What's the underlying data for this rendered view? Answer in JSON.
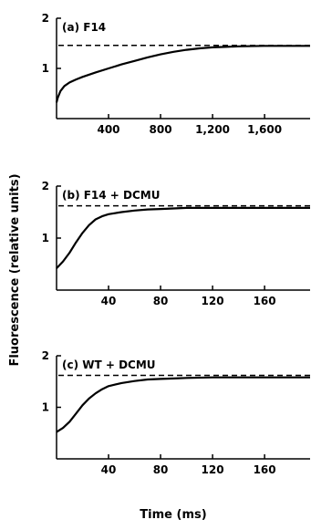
{
  "chart_data": [
    {
      "type": "line",
      "panel_label": "(a) F14",
      "xlim": [
        0,
        1950
      ],
      "ylim": [
        0,
        2
      ],
      "xticks": [
        400,
        800,
        1200,
        1600
      ],
      "xtick_labels": [
        "400",
        "800",
        "1,200",
        "1,600"
      ],
      "yticks": [
        1,
        2
      ],
      "ytick_labels": [
        "1",
        "2"
      ],
      "reference_level": 1.46,
      "x": [
        0,
        10,
        30,
        60,
        100,
        150,
        200,
        300,
        400,
        500,
        600,
        700,
        800,
        900,
        1000,
        1100,
        1200,
        1300,
        1400,
        1600,
        1800,
        1950
      ],
      "y": [
        0.32,
        0.42,
        0.55,
        0.65,
        0.72,
        0.78,
        0.83,
        0.92,
        1.0,
        1.08,
        1.15,
        1.22,
        1.28,
        1.33,
        1.37,
        1.4,
        1.42,
        1.43,
        1.44,
        1.45,
        1.45,
        1.45
      ]
    },
    {
      "type": "line",
      "panel_label": "(b) F14 + DCMU",
      "xlim": [
        0,
        195
      ],
      "ylim": [
        0,
        2
      ],
      "xticks": [
        40,
        80,
        120,
        160
      ],
      "xtick_labels": [
        "40",
        "80",
        "120",
        "160"
      ],
      "yticks": [
        1,
        2
      ],
      "ytick_labels": [
        "1",
        "2"
      ],
      "reference_level": 1.62,
      "x": [
        0,
        5,
        10,
        15,
        20,
        25,
        30,
        35,
        40,
        50,
        60,
        70,
        80,
        90,
        100,
        120,
        140,
        160,
        195
      ],
      "y": [
        0.42,
        0.55,
        0.72,
        0.92,
        1.1,
        1.25,
        1.36,
        1.42,
        1.46,
        1.5,
        1.53,
        1.55,
        1.56,
        1.57,
        1.58,
        1.58,
        1.58,
        1.58,
        1.58
      ]
    },
    {
      "type": "line",
      "panel_label": "(c) WT + DCMU",
      "xlim": [
        0,
        195
      ],
      "ylim": [
        0,
        2
      ],
      "xticks": [
        40,
        80,
        120,
        160
      ],
      "xtick_labels": [
        "40",
        "80",
        "120",
        "160"
      ],
      "yticks": [
        1,
        2
      ],
      "ytick_labels": [
        "1",
        "2"
      ],
      "reference_level": 1.62,
      "x": [
        0,
        5,
        10,
        15,
        20,
        25,
        30,
        35,
        40,
        50,
        60,
        70,
        80,
        90,
        100,
        120,
        140,
        160,
        195
      ],
      "y": [
        0.52,
        0.6,
        0.72,
        0.88,
        1.04,
        1.17,
        1.27,
        1.35,
        1.41,
        1.47,
        1.51,
        1.54,
        1.55,
        1.56,
        1.57,
        1.58,
        1.58,
        1.58,
        1.58
      ]
    }
  ],
  "axes": {
    "ylabel": "Fluorescence (relative units)",
    "xlabel": "Time (ms)"
  },
  "colors": {
    "line": "#000000",
    "background": "#ffffff"
  }
}
